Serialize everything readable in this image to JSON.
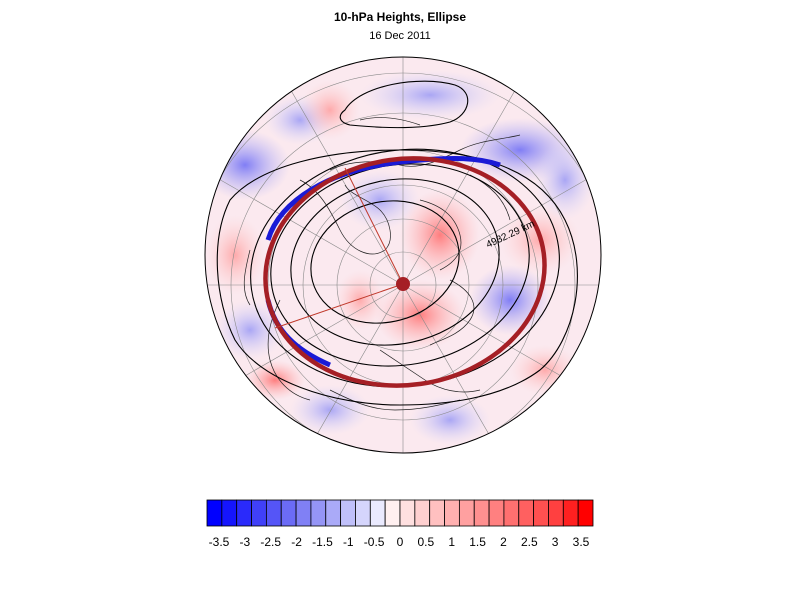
{
  "figure": {
    "title": "10-hPa Heights, Ellipse",
    "date": "16 Dec 2011"
  },
  "map": {
    "projection": "north-polar-stereographic",
    "ellipse_label": "4932.29 km",
    "colors": {
      "ellipse_red": "#a51f25",
      "ellipse_blue": "#1a1ad6",
      "axis_line": "#c0392b",
      "contour": "#000000",
      "grid": "#8a8a8a"
    }
  },
  "colorbar": {
    "tick_labels": [
      "-3.5",
      "-3",
      "-2.5",
      "-2",
      "-1.5",
      "-1",
      "-0.5",
      "0",
      "0.5",
      "1",
      "1.5",
      "2",
      "2.5",
      "3",
      "3.5"
    ],
    "colors": [
      "#0000ff",
      "#1515fd",
      "#2a2afb",
      "#4040f8",
      "#5555f7",
      "#6b6bf6",
      "#8080f5",
      "#9595f6",
      "#aaaaf8",
      "#c0c0fa",
      "#d5d5fc",
      "#eaeafe",
      "#fff0f0",
      "#ffe0e0",
      "#ffd0d0",
      "#ffc0c0",
      "#ffb0b0",
      "#ffa0a0",
      "#ff9090",
      "#ff8080",
      "#ff7070",
      "#ff6060",
      "#ff5050",
      "#ff4040",
      "#ff2020",
      "#ff0000"
    ]
  }
}
